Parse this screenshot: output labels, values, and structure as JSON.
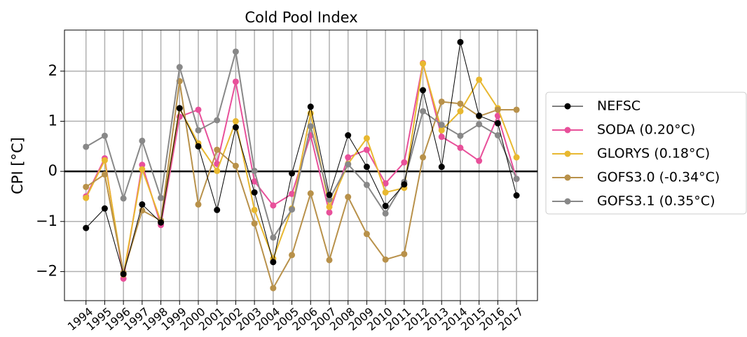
{
  "chart_data": {
    "type": "line",
    "title": "Cold Pool Index",
    "ylabel": "CPI [°C]",
    "x": [
      1994,
      1995,
      1996,
      1997,
      1998,
      1999,
      2000,
      2001,
      2002,
      2003,
      2004,
      2005,
      2006,
      2007,
      2008,
      2009,
      2010,
      2011,
      2012,
      2013,
      2014,
      2015,
      2016,
      2017
    ],
    "xlim": [
      1992.85,
      2018.12
    ],
    "xticks": [
      1994,
      1995,
      1996,
      1997,
      1998,
      1999,
      2000,
      2001,
      2002,
      2003,
      2004,
      2005,
      2006,
      2007,
      2008,
      2009,
      2010,
      2011,
      2012,
      2013,
      2014,
      2015,
      2016,
      2017
    ],
    "ylim": [
      -2.58,
      2.82
    ],
    "yticks": [
      {
        "value": -2,
        "label": "−2"
      },
      {
        "value": -1,
        "label": "−1"
      },
      0,
      1,
      2
    ],
    "grid": true,
    "hline": 0,
    "legend": "outside right",
    "series": [
      {
        "name": "NEFSC",
        "color": "#000000",
        "width": 1,
        "values": [
          -1.13,
          -0.74,
          -2.05,
          -0.66,
          -1.02,
          1.26,
          0.5,
          -0.77,
          0.88,
          -0.42,
          -1.81,
          -0.04,
          1.29,
          -0.47,
          0.72,
          0.09,
          -0.69,
          -0.26,
          1.62,
          0.09,
          2.58,
          1.11,
          0.96,
          -0.48
        ]
      },
      {
        "name": "SODA (0.20°C)",
        "color": "#e8509a",
        "width": 2,
        "values": [
          -0.5,
          0.26,
          -2.14,
          0.13,
          -1.07,
          1.09,
          1.23,
          0.15,
          1.79,
          -0.2,
          -0.68,
          -0.45,
          0.72,
          -0.82,
          0.28,
          0.43,
          -0.24,
          0.18,
          2.16,
          0.69,
          0.47,
          0.21,
          1.11,
          -0.15
        ]
      },
      {
        "name": "GLORYS (0.18°C)",
        "color": "#e8b830",
        "width": 2,
        "values": [
          -0.53,
          0.22,
          -2.06,
          0.04,
          -0.99,
          1.26,
          0.56,
          0.01,
          1.0,
          -0.77,
          -1.74,
          -0.74,
          1.16,
          -0.71,
          0.15,
          0.66,
          -0.42,
          -0.33,
          2.15,
          0.82,
          1.2,
          1.83,
          1.26,
          0.28
        ]
      },
      {
        "name": "GOFS3.0 (-0.34°C)",
        "color": "#b8914a",
        "width": 2,
        "values": [
          -0.31,
          -0.06,
          -2.02,
          -0.78,
          -0.98,
          1.8,
          -0.66,
          0.43,
          0.11,
          -1.04,
          -2.33,
          -1.67,
          -0.44,
          -1.77,
          -0.51,
          -1.25,
          -1.76,
          -1.65,
          0.28,
          1.39,
          1.35,
          1.1,
          1.23,
          1.23
        ]
      },
      {
        "name": "GOFS3.1 (0.35°C)",
        "color": "#888888",
        "width": 2,
        "values": [
          0.49,
          0.71,
          -0.54,
          0.61,
          -0.53,
          2.08,
          0.82,
          1.02,
          2.39,
          0.01,
          -1.32,
          -0.76,
          0.9,
          -0.56,
          0.14,
          -0.27,
          -0.84,
          -0.21,
          1.2,
          0.93,
          0.71,
          0.94,
          0.72,
          -0.15
        ]
      }
    ]
  }
}
